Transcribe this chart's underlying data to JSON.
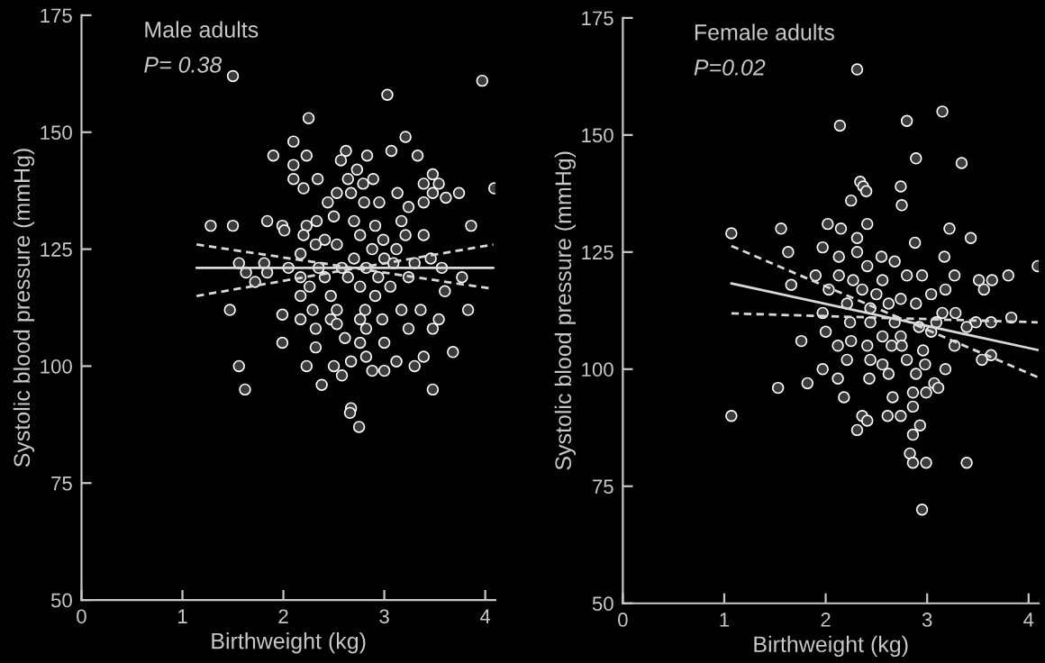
{
  "chart_data": [
    {
      "type": "scatter",
      "xlabel": "Birthweight (kg)",
      "ylabel": "Systolic blood pressure (mmHg)",
      "annotations": [
        "Male adults",
        "P= 0.38"
      ],
      "xlim": [
        0,
        4.1
      ],
      "xticks": [
        0,
        1,
        2,
        3,
        4
      ],
      "ylim": [
        50,
        175
      ],
      "yticks": [
        50,
        75,
        100,
        125,
        150,
        175
      ],
      "grid": false,
      "legend": false,
      "series": [
        {
          "marker": "circle",
          "color": "#3c3c3c",
          "x": [
            1.5,
            3.97,
            3.03,
            2.25,
            3.21,
            2.1,
            1.9,
            2.23,
            2.62,
            2.83,
            3.07,
            3.33,
            2.1,
            2.57,
            2.73,
            3.48,
            2.1,
            2.34,
            2.64,
            2.89,
            2.79,
            3.39,
            3.54,
            4.09,
            2.2,
            3.13,
            3.74,
            3.61,
            3.48,
            2.53,
            2.67,
            2.8,
            2.95,
            2.44,
            3.39,
            3.24,
            1.28,
            1.5,
            1.84,
            1.99,
            2.01,
            2.23,
            2.33,
            2.5,
            2.7,
            2.91,
            3.17,
            3.86,
            2.2,
            2.41,
            2.76,
            2.99,
            3.21,
            3.39,
            2.32,
            2.53,
            2.88,
            3.12,
            2.17,
            2.7,
            3.0,
            3.3,
            3.46,
            1.56,
            1.81,
            2.05,
            2.35,
            2.58,
            2.82,
            3.09,
            3.57,
            1.63,
            1.84,
            2.17,
            2.41,
            2.64,
            2.94,
            3.24,
            3.77,
            1.72,
            2.26,
            2.76,
            3.06,
            3.6,
            2.17,
            2.47,
            2.91,
            1.47,
            1.99,
            2.29,
            2.53,
            2.81,
            3.17,
            3.36,
            3.83,
            2.17,
            2.47,
            2.76,
            2.98,
            3.54,
            3.24,
            2.32,
            2.53,
            2.82,
            3.48,
            2.61,
            1.99,
            2.32,
            2.76,
            3.0,
            3.68,
            3.39,
            2.5,
            2.67,
            2.82,
            3.12,
            3.3,
            1.56,
            2.23,
            3.0,
            2.88,
            2.58,
            2.38,
            1.62,
            3.48,
            2.67,
            2.66,
            2.75
          ],
          "values": [
            162,
            161,
            158,
            153,
            149,
            148,
            145,
            145,
            146,
            145,
            146,
            145,
            143,
            144,
            142,
            141,
            140,
            140,
            140,
            140,
            139,
            139,
            139,
            138,
            138,
            137,
            137,
            136,
            137,
            137,
            137,
            135,
            135,
            135,
            135,
            134,
            130,
            130,
            131,
            130,
            129,
            130,
            131,
            132,
            131,
            130,
            131,
            130,
            128,
            127,
            128,
            127,
            128,
            128,
            126,
            126,
            125,
            125,
            124,
            123,
            123,
            122,
            123,
            122,
            122,
            121,
            121,
            121,
            121,
            122,
            121,
            120,
            120,
            119,
            119,
            119,
            119,
            119,
            119,
            118,
            117,
            117,
            117,
            116,
            115,
            115,
            115,
            112,
            111,
            112,
            112,
            112,
            112,
            112,
            112,
            110,
            110,
            110,
            110,
            110,
            108,
            108,
            109,
            108,
            108,
            106,
            105,
            104,
            105,
            105,
            103,
            102,
            100,
            101,
            102,
            101,
            100,
            100,
            100,
            99,
            99,
            98,
            96,
            95,
            95,
            91,
            90,
            87
          ]
        },
        {
          "type": "line",
          "color": "#d9d9d9",
          "line_style": "solid",
          "x": [
            1.14,
            4.08
          ],
          "values": [
            121,
            121
          ]
        },
        {
          "type": "line",
          "color": "#d9d9d9",
          "line_style": "dashed",
          "x": [
            1.14,
            4.08
          ],
          "values": [
            126,
            116.5
          ]
        },
        {
          "type": "line",
          "color": "#d9d9d9",
          "line_style": "dashed",
          "x": [
            1.14,
            4.08
          ],
          "values": [
            115,
            126
          ]
        }
      ]
    },
    {
      "type": "scatter",
      "xlabel": "Birthweight (kg)",
      "ylabel": "Systolic blood pressure (mmHg)",
      "annotations": [
        "Female adults",
        "P=0.02"
      ],
      "xlim": [
        0,
        4.1
      ],
      "xticks": [
        0,
        1,
        2,
        3,
        4
      ],
      "ylim": [
        50,
        175
      ],
      "yticks": [
        50,
        75,
        100,
        125,
        150,
        175
      ],
      "grid": false,
      "legend": false,
      "series": [
        {
          "marker": "circle",
          "color": "#3c3c3c",
          "x": [
            2.31,
            3.15,
            2.14,
            2.8,
            2.89,
            3.34,
            2.34,
            2.37,
            2.4,
            2.74,
            2.25,
            2.75,
            1.07,
            1.56,
            2.02,
            2.15,
            2.41,
            3.22,
            2.31,
            3.43,
            2.88,
            1.97,
            1.63,
            2.13,
            2.31,
            2.55,
            2.68,
            3.17,
            4.09,
            1.9,
            2.13,
            2.27,
            2.41,
            2.56,
            2.8,
            2.95,
            3.27,
            3.51,
            3.64,
            3.8,
            1.66,
            2.03,
            2.36,
            2.5,
            2.74,
            3.04,
            3.18,
            3.56,
            2.21,
            2.44,
            2.62,
            2.89,
            3.15,
            3.28,
            3.48,
            3.63,
            3.83,
            1.97,
            2.24,
            2.44,
            2.68,
            2.92,
            3.09,
            3.39,
            2.0,
            2.56,
            2.74,
            3.04,
            3.27,
            3.63,
            2.12,
            2.25,
            2.41,
            2.65,
            2.75,
            2.96,
            1.76,
            2.21,
            2.44,
            2.56,
            2.8,
            2.98,
            3.18,
            3.54,
            1.97,
            2.12,
            2.43,
            2.62,
            2.89,
            3.07,
            1.82,
            1.53,
            2.86,
            2.99,
            3.11,
            2.18,
            2.66,
            1.07,
            2.36,
            2.41,
            2.61,
            2.74,
            2.86,
            2.31,
            2.93,
            2.86,
            2.83,
            2.86,
            2.99,
            3.39,
            2.95
          ],
          "values": [
            164,
            155,
            152,
            153,
            145,
            144,
            140,
            139,
            138,
            139,
            136,
            135,
            129,
            130,
            131,
            130,
            131,
            130,
            128,
            128,
            127,
            126,
            125,
            124,
            125,
            124,
            123,
            124,
            122,
            120,
            120,
            119,
            122,
            119,
            120,
            120,
            120,
            119,
            119,
            120,
            118,
            117,
            117,
            116,
            115,
            116,
            117,
            117,
            114,
            113,
            114,
            114,
            112,
            112,
            110,
            110,
            111,
            112,
            110,
            110,
            110,
            109,
            110,
            109,
            108,
            107,
            107,
            108,
            105,
            103,
            105,
            106,
            105,
            105,
            105,
            104,
            106,
            102,
            102,
            101,
            102,
            101,
            100,
            102,
            100,
            98,
            98,
            99,
            99,
            97,
            97,
            96,
            95,
            95,
            96,
            94,
            94,
            90,
            90,
            89,
            90,
            90,
            92,
            87,
            88,
            86,
            82,
            80,
            80,
            80,
            70
          ]
        },
        {
          "type": "line",
          "color": "#d9d9d9",
          "line_style": "solid",
          "x": [
            1.07,
            4.09
          ],
          "values": [
            118.3,
            104.1
          ]
        },
        {
          "type": "line",
          "color": "#d9d9d9",
          "line_style": "dashed",
          "x": [
            1.07,
            4.09
          ],
          "values": [
            126.3,
            98.3
          ]
        },
        {
          "type": "line",
          "color": "#d9d9d9",
          "line_style": "dashed",
          "x": [
            1.07,
            4.09
          ],
          "values": [
            111.9,
            110.0
          ]
        }
      ]
    }
  ]
}
